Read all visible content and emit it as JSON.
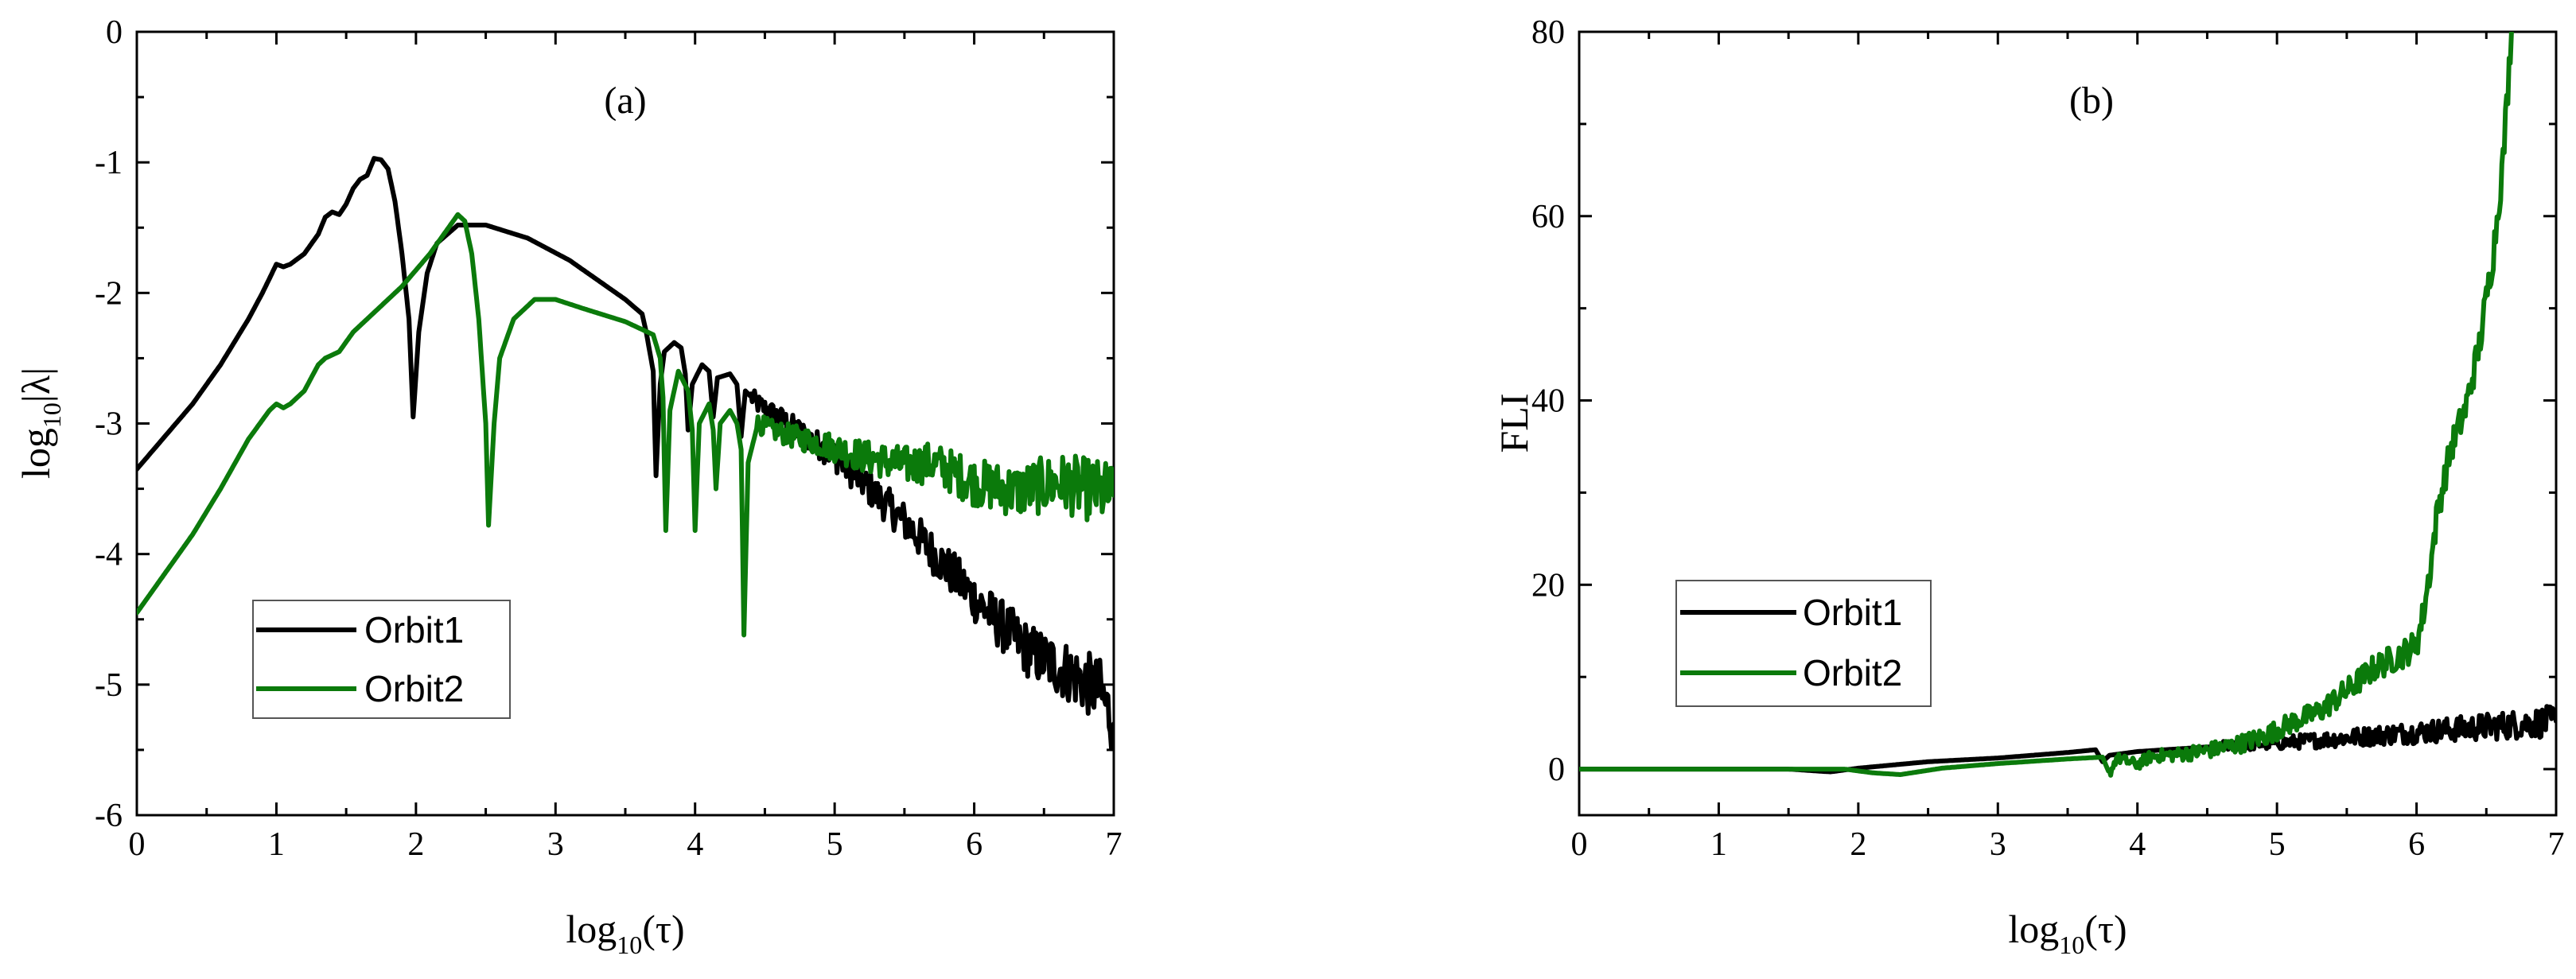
{
  "chart_data": [
    {
      "type": "line",
      "panel_label": "(a)",
      "xlabel_base": "log",
      "xlabel_sub": "10",
      "xlabel_arg": "(τ)",
      "ylabel_base": "log",
      "ylabel_sub": "10",
      "ylabel_arg": "|λ|",
      "xlim": [
        0,
        7
      ],
      "ylim": [
        -6,
        0
      ],
      "xticks": [
        "0",
        "1",
        "2",
        "3",
        "4",
        "5",
        "6",
        "7"
      ],
      "yticks": [
        "-6",
        "-5",
        "-4",
        "-3",
        "-2",
        "-1",
        "0"
      ],
      "legend_position": "bottom-left",
      "series": [
        {
          "name": "Orbit1",
          "color": "#000000",
          "noisy_from": 4.4,
          "points": [
            [
              0,
              -3.35
            ],
            [
              0.2,
              -3.1
            ],
            [
              0.4,
              -2.85
            ],
            [
              0.6,
              -2.55
            ],
            [
              0.8,
              -2.2
            ],
            [
              0.9,
              -2.0
            ],
            [
              1.0,
              -1.78
            ],
            [
              1.05,
              -1.8
            ],
            [
              1.1,
              -1.78
            ],
            [
              1.2,
              -1.7
            ],
            [
              1.3,
              -1.55
            ],
            [
              1.35,
              -1.42
            ],
            [
              1.4,
              -1.38
            ],
            [
              1.45,
              -1.4
            ],
            [
              1.5,
              -1.32
            ],
            [
              1.55,
              -1.2
            ],
            [
              1.6,
              -1.13
            ],
            [
              1.65,
              -1.1
            ],
            [
              1.7,
              -0.97
            ],
            [
              1.75,
              -0.98
            ],
            [
              1.8,
              -1.05
            ],
            [
              1.85,
              -1.3
            ],
            [
              1.9,
              -1.7
            ],
            [
              1.95,
              -2.2
            ],
            [
              1.98,
              -2.95
            ],
            [
              2.02,
              -2.3
            ],
            [
              2.08,
              -1.85
            ],
            [
              2.15,
              -1.62
            ],
            [
              2.3,
              -1.48
            ],
            [
              2.5,
              -1.48
            ],
            [
              2.8,
              -1.58
            ],
            [
              3.1,
              -1.75
            ],
            [
              3.3,
              -1.9
            ],
            [
              3.5,
              -2.05
            ],
            [
              3.62,
              -2.16
            ],
            [
              3.65,
              -2.3
            ],
            [
              3.7,
              -2.6
            ],
            [
              3.72,
              -3.4
            ],
            [
              3.75,
              -2.7
            ],
            [
              3.78,
              -2.45
            ],
            [
              3.85,
              -2.38
            ],
            [
              3.9,
              -2.42
            ],
            [
              3.93,
              -2.62
            ],
            [
              3.95,
              -3.05
            ],
            [
              3.98,
              -2.7
            ],
            [
              4.05,
              -2.55
            ],
            [
              4.1,
              -2.6
            ],
            [
              4.13,
              -2.95
            ],
            [
              4.16,
              -2.65
            ],
            [
              4.25,
              -2.62
            ],
            [
              4.3,
              -2.7
            ],
            [
              4.33,
              -3.1
            ],
            [
              4.36,
              -2.75
            ],
            [
              4.45,
              -2.85
            ],
            [
              4.6,
              -2.95
            ],
            [
              4.8,
              -3.1
            ],
            [
              5.0,
              -3.25
            ],
            [
              5.2,
              -3.45
            ],
            [
              5.5,
              -3.75
            ],
            [
              5.8,
              -4.1
            ],
            [
              6.1,
              -4.45
            ],
            [
              6.4,
              -4.75
            ],
            [
              6.7,
              -4.92
            ],
            [
              6.9,
              -5.05
            ],
            [
              7.0,
              -5.3
            ]
          ]
        },
        {
          "name": "Orbit2",
          "color": "#0b7a0b",
          "noisy_from": 4.45,
          "points": [
            [
              0,
              -4.45
            ],
            [
              0.2,
              -4.15
            ],
            [
              0.4,
              -3.85
            ],
            [
              0.6,
              -3.5
            ],
            [
              0.8,
              -3.12
            ],
            [
              0.95,
              -2.9
            ],
            [
              1.0,
              -2.85
            ],
            [
              1.05,
              -2.88
            ],
            [
              1.1,
              -2.85
            ],
            [
              1.2,
              -2.75
            ],
            [
              1.3,
              -2.55
            ],
            [
              1.35,
              -2.5
            ],
            [
              1.45,
              -2.45
            ],
            [
              1.55,
              -2.3
            ],
            [
              1.7,
              -2.15
            ],
            [
              1.9,
              -1.95
            ],
            [
              2.1,
              -1.7
            ],
            [
              2.2,
              -1.55
            ],
            [
              2.3,
              -1.4
            ],
            [
              2.35,
              -1.45
            ],
            [
              2.4,
              -1.7
            ],
            [
              2.45,
              -2.2
            ],
            [
              2.5,
              -3.0
            ],
            [
              2.52,
              -3.78
            ],
            [
              2.56,
              -3.0
            ],
            [
              2.6,
              -2.5
            ],
            [
              2.7,
              -2.2
            ],
            [
              2.85,
              -2.05
            ],
            [
              3.0,
              -2.05
            ],
            [
              3.2,
              -2.12
            ],
            [
              3.5,
              -2.22
            ],
            [
              3.7,
              -2.32
            ],
            [
              3.75,
              -2.5
            ],
            [
              3.77,
              -2.8
            ],
            [
              3.79,
              -3.82
            ],
            [
              3.82,
              -2.9
            ],
            [
              3.88,
              -2.6
            ],
            [
              3.95,
              -2.75
            ],
            [
              3.98,
              -3.05
            ],
            [
              4.0,
              -3.82
            ],
            [
              4.03,
              -3.0
            ],
            [
              4.1,
              -2.85
            ],
            [
              4.13,
              -3.05
            ],
            [
              4.15,
              -3.5
            ],
            [
              4.18,
              -3.0
            ],
            [
              4.25,
              -2.9
            ],
            [
              4.3,
              -3.0
            ],
            [
              4.33,
              -3.2
            ],
            [
              4.35,
              -4.62
            ],
            [
              4.38,
              -3.3
            ],
            [
              4.45,
              -3.0
            ],
            [
              4.55,
              -3.05
            ],
            [
              4.7,
              -3.1
            ],
            [
              4.9,
              -3.15
            ],
            [
              5.2,
              -3.25
            ],
            [
              5.5,
              -3.32
            ],
            [
              5.7,
              -3.3
            ],
            [
              6.0,
              -3.45
            ],
            [
              6.3,
              -3.52
            ],
            [
              6.6,
              -3.45
            ],
            [
              6.8,
              -3.5
            ],
            [
              7.0,
              -3.55
            ]
          ]
        }
      ]
    },
    {
      "type": "line",
      "panel_label": "(b)",
      "xlabel_base": "log",
      "xlabel_sub": "10",
      "xlabel_arg": "(τ)",
      "ylabel": "FLI",
      "xlim": [
        0,
        7
      ],
      "ylim": [
        -5,
        80
      ],
      "xticks": [
        "0",
        "1",
        "2",
        "3",
        "4",
        "5",
        "6",
        "7"
      ],
      "yticks": [
        "0",
        "20",
        "40",
        "60",
        "80"
      ],
      "legend_position": "bottom-left",
      "series": [
        {
          "name": "Orbit1",
          "color": "#000000",
          "noisy_from": 4.6,
          "points": [
            [
              0,
              0
            ],
            [
              1.5,
              0
            ],
            [
              1.8,
              -0.3
            ],
            [
              2.0,
              0.1
            ],
            [
              2.5,
              0.8
            ],
            [
              3.0,
              1.2
            ],
            [
              3.5,
              1.8
            ],
            [
              3.7,
              2.1
            ],
            [
              3.75,
              0.8
            ],
            [
              3.8,
              1.5
            ],
            [
              4.0,
              1.9
            ],
            [
              4.3,
              2.2
            ],
            [
              4.6,
              2.5
            ],
            [
              5.0,
              2.8
            ],
            [
              5.5,
              3.4
            ],
            [
              6.0,
              4.0
            ],
            [
              6.5,
              4.6
            ],
            [
              7.0,
              5.2
            ]
          ]
        },
        {
          "name": "Orbit2",
          "color": "#0b7a0b",
          "noisy_from": 3.8,
          "points": [
            [
              0,
              0
            ],
            [
              1.9,
              0
            ],
            [
              2.1,
              -0.4
            ],
            [
              2.3,
              -0.6
            ],
            [
              2.6,
              0.1
            ],
            [
              3.0,
              0.6
            ],
            [
              3.5,
              1.1
            ],
            [
              3.75,
              1.3
            ],
            [
              3.8,
              -0.5
            ],
            [
              3.85,
              1.2
            ],
            [
              4.0,
              0.5
            ],
            [
              4.1,
              1.4
            ],
            [
              4.3,
              1.6
            ],
            [
              4.5,
              2.0
            ],
            [
              4.7,
              2.6
            ],
            [
              4.9,
              3.5
            ],
            [
              5.1,
              5.0
            ],
            [
              5.3,
              6.2
            ],
            [
              5.5,
              8.5
            ],
            [
              5.7,
              11.0
            ],
            [
              5.9,
              12.5
            ],
            [
              6.0,
              13.5
            ],
            [
              6.05,
              17.0
            ],
            [
              6.1,
              22.0
            ],
            [
              6.15,
              28.0
            ],
            [
              6.25,
              35.0
            ],
            [
              6.35,
              39.0
            ],
            [
              6.45,
              46.0
            ],
            [
              6.55,
              56.0
            ],
            [
              6.62,
              66.0
            ],
            [
              6.68,
              80.0
            ]
          ]
        }
      ]
    }
  ]
}
